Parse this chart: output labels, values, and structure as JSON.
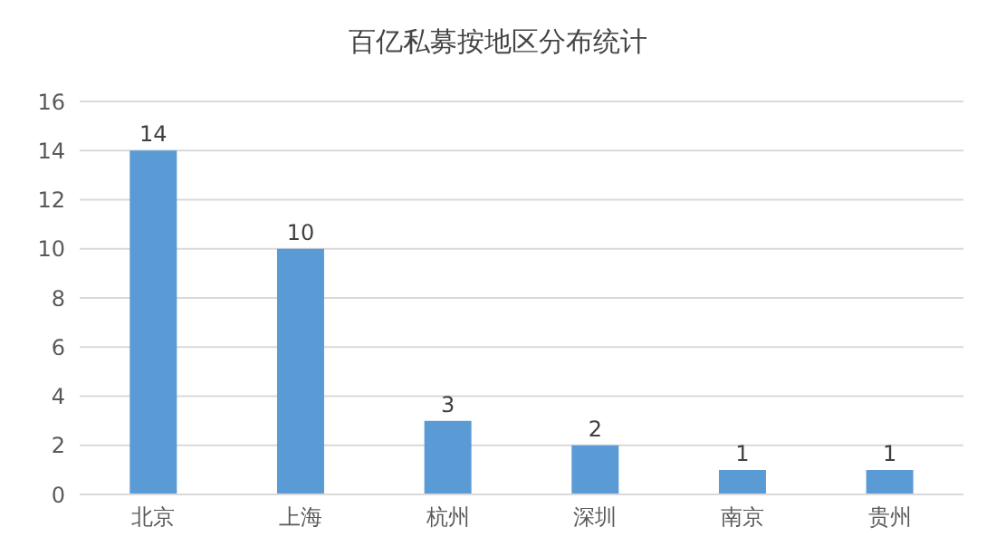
{
  "chart_data": {
    "type": "bar",
    "title": "百亿私募按地区分布统计",
    "categories": [
      "北京",
      "上海",
      "杭州",
      "深圳",
      "南京",
      "贵州"
    ],
    "values": [
      14,
      10,
      3,
      2,
      1,
      1
    ],
    "color": "#5b9bd5",
    "ylim": [
      0,
      16
    ],
    "yticks": [
      0,
      2,
      4,
      6,
      8,
      10,
      12,
      14,
      16
    ],
    "grid": "y",
    "data_labels": true
  }
}
